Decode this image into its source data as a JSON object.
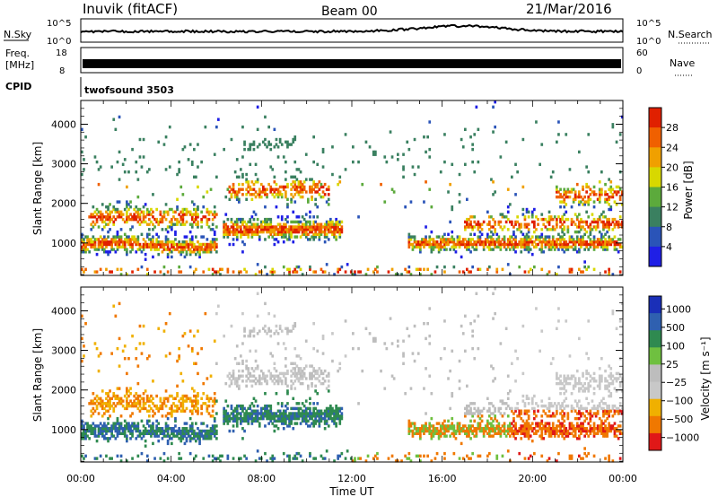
{
  "header": {
    "station": "Inuvik (fitACF)",
    "beam": "Beam 00",
    "date": "21/Mar/2016"
  },
  "top_panels": {
    "nsky": {
      "label": "N.Sky",
      "left_ticks": [
        "10^5",
        "10^0"
      ],
      "right_ticks": [
        "10^5",
        "10^0"
      ],
      "right_label": "N.Search"
    },
    "freq": {
      "label_line1": "Freq.",
      "label_line2": "[MHz]",
      "left_ticks": [
        "18",
        "8"
      ],
      "right_ticks": [
        "60",
        "0"
      ],
      "right_label": "Nave"
    },
    "cpid": {
      "label": "CPID",
      "program": "twofsound 3503"
    }
  },
  "colors": {
    "power_scale": [
      "#1f1fe6",
      "#2a54b8",
      "#3a8060",
      "#5caa3c",
      "#d8d800",
      "#f0a000",
      "#f06000",
      "#e02000"
    ],
    "velocity_scale": [
      "#e01818",
      "#f07800",
      "#f0b000",
      "#c8c8c8",
      "#bdbdbd",
      "#6fc040",
      "#2f8a50",
      "#2f60b0",
      "#1a2fb8"
    ]
  },
  "chart_data": [
    {
      "type": "heatmap",
      "name": "power",
      "ylabel": "Slant Range [km]",
      "xlabel": "Time UT",
      "x_ticks": [
        "00:00",
        "04:00",
        "08:00",
        "12:00",
        "16:00",
        "20:00",
        "00:00"
      ],
      "x_range_hours": [
        0,
        24
      ],
      "y_ticks": [
        1000,
        2000,
        3000,
        4000
      ],
      "ylim": [
        180,
        4600
      ],
      "colorbar_label": "Power [dB]",
      "colorbar_ticks": [
        4,
        8,
        12,
        16,
        20,
        24,
        28
      ],
      "colorbar_range": [
        0,
        32
      ]
    },
    {
      "type": "heatmap",
      "name": "velocity",
      "ylabel": "Slant Range [km]",
      "xlabel": "Time UT",
      "x_ticks": [
        "00:00",
        "04:00",
        "08:00",
        "12:00",
        "16:00",
        "20:00",
        "00:00"
      ],
      "x_range_hours": [
        0,
        24
      ],
      "y_ticks": [
        1000,
        2000,
        3000,
        4000
      ],
      "ylim": [
        180,
        4600
      ],
      "colorbar_label": "Velocity [m s⁻¹]",
      "colorbar_ticks": [
        "1000",
        "500",
        "100",
        "25",
        "−25",
        "−100",
        "−500",
        "−1000"
      ]
    }
  ]
}
